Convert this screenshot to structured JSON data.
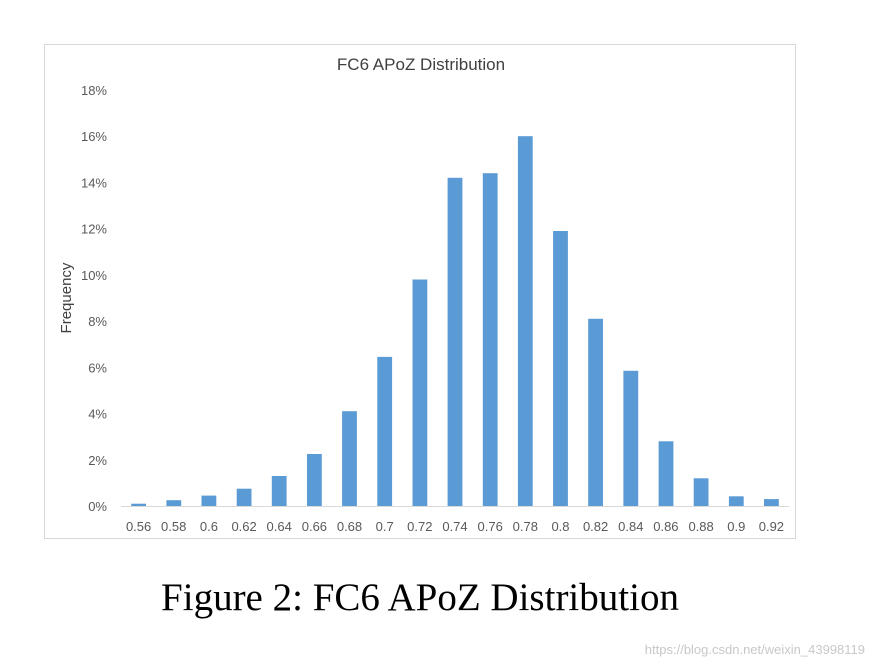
{
  "chart_data": {
    "type": "bar",
    "title": "FC6 APoZ Distribution",
    "xlabel": "",
    "ylabel": "Frequency",
    "categories": [
      "0.56",
      "0.58",
      "0.6",
      "0.62",
      "0.64",
      "0.66",
      "0.68",
      "0.7",
      "0.72",
      "0.74",
      "0.76",
      "0.78",
      "0.8",
      "0.82",
      "0.84",
      "0.86",
      "0.88",
      "0.9",
      "0.92"
    ],
    "values": [
      0.1,
      0.25,
      0.45,
      0.75,
      1.3,
      2.25,
      4.1,
      6.45,
      9.8,
      14.2,
      14.4,
      16.0,
      11.9,
      8.1,
      5.85,
      2.8,
      1.2,
      0.42,
      0.3
    ],
    "value_unit": "%",
    "ylim": [
      0,
      18
    ],
    "yticks": [
      0,
      2,
      4,
      6,
      8,
      10,
      12,
      14,
      16,
      18
    ],
    "ytick_labels": [
      "0%",
      "2%",
      "4%",
      "6%",
      "8%",
      "10%",
      "12%",
      "14%",
      "16%",
      "18%"
    ],
    "grid": false,
    "legend": "none",
    "bar_color": "#5b9bd5"
  },
  "caption": "Figure 2: FC6 APoZ Distribution",
  "watermark": "https://blog.csdn.net/weixin_43998119"
}
